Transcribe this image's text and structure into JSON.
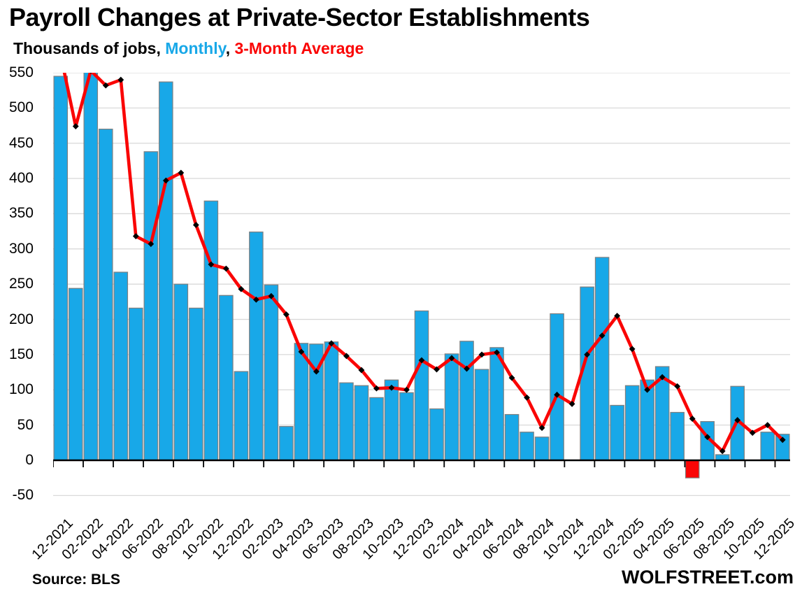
{
  "header": {
    "title": "Payroll Changes at Private-Sector Establishments",
    "subtitle_prefix": "Thousands of jobs, ",
    "subtitle_monthly": "Monthly",
    "subtitle_separator": ", ",
    "subtitle_average": "3-Month Average"
  },
  "footer": {
    "source": "Source: BLS",
    "brand": "WOLFSTREET.com"
  },
  "colors": {
    "bar_positive": "#18A8E8",
    "bar_negative": "#FA0505",
    "bar_border": "#7F7F7F",
    "line": "#FA0505",
    "marker": "#000000",
    "grid": "#D9D9D9",
    "axis": "#000000",
    "text": "#000000",
    "subtitle_monthly": "#18A8E8",
    "subtitle_average": "#FA0505"
  },
  "chart_data": {
    "type": "bar",
    "title": "Payroll Changes at Private-Sector Establishments",
    "ylabel": "Thousands of jobs",
    "ylim": [
      -50,
      550
    ],
    "ytick_step": 50,
    "grid": true,
    "legend_position": "in-subtitle",
    "clip_top": 550,
    "notes": "Bars clipped at 550 top (02-2022). Null bars = no data shown (10-2024, 10-2025). 06-2025 bar is negative and drawn red.",
    "categories": [
      "12-2021",
      "01-2022",
      "02-2022",
      "03-2022",
      "04-2022",
      "05-2022",
      "06-2022",
      "07-2022",
      "08-2022",
      "09-2022",
      "10-2022",
      "11-2022",
      "12-2022",
      "01-2023",
      "02-2023",
      "03-2023",
      "04-2023",
      "05-2023",
      "06-2023",
      "07-2023",
      "08-2023",
      "09-2023",
      "10-2023",
      "11-2023",
      "12-2023",
      "01-2024",
      "02-2024",
      "03-2024",
      "04-2024",
      "05-2024",
      "06-2024",
      "07-2024",
      "08-2024",
      "09-2024",
      "10-2024",
      "11-2024",
      "12-2024",
      "01-2025",
      "02-2025",
      "03-2025",
      "04-2025",
      "05-2025",
      "06-2025",
      "07-2025",
      "08-2025",
      "09-2025",
      "10-2025",
      "11-2025",
      "12-2025"
    ],
    "x_tick_labels": [
      "12-2021",
      "02-2022",
      "04-2022",
      "06-2022",
      "08-2022",
      "10-2022",
      "12-2022",
      "02-2023",
      "04-2023",
      "06-2023",
      "08-2023",
      "10-2023",
      "12-2023",
      "02-2024",
      "04-2024",
      "06-2024",
      "08-2024",
      "10-2024",
      "12-2024",
      "02-2025",
      "04-2025",
      "06-2025",
      "08-2025",
      "10-2025",
      "12-2025"
    ],
    "y_tick_labels": [
      "550",
      "500",
      "450",
      "400",
      "350",
      "300",
      "250",
      "200",
      "150",
      "100",
      "50",
      "0",
      "-50"
    ],
    "series": [
      {
        "name": "Monthly",
        "type": "bar",
        "values": [
          545,
          244,
          558,
          470,
          267,
          216,
          438,
          537,
          250,
          216,
          368,
          234,
          126,
          324,
          249,
          48,
          166,
          165,
          168,
          110,
          106,
          89,
          114,
          96,
          212,
          73,
          151,
          169,
          129,
          160,
          65,
          40,
          33,
          208,
          null,
          246,
          288,
          78,
          106,
          114,
          133,
          68,
          -25,
          55,
          8,
          105,
          null,
          40,
          37
        ]
      },
      {
        "name": "3-Month Average",
        "type": "line",
        "values": [
          575,
          474,
          553,
          532,
          540,
          318,
          307,
          397,
          408,
          334,
          278,
          272,
          243,
          228,
          233,
          207,
          154,
          126,
          166,
          148,
          128,
          102,
          103,
          100,
          142,
          129,
          145,
          130,
          150,
          153,
          117,
          89,
          46,
          93,
          80,
          150,
          177,
          205,
          158,
          100,
          118,
          105,
          59,
          33,
          13,
          57,
          39,
          50,
          29
        ]
      }
    ]
  }
}
